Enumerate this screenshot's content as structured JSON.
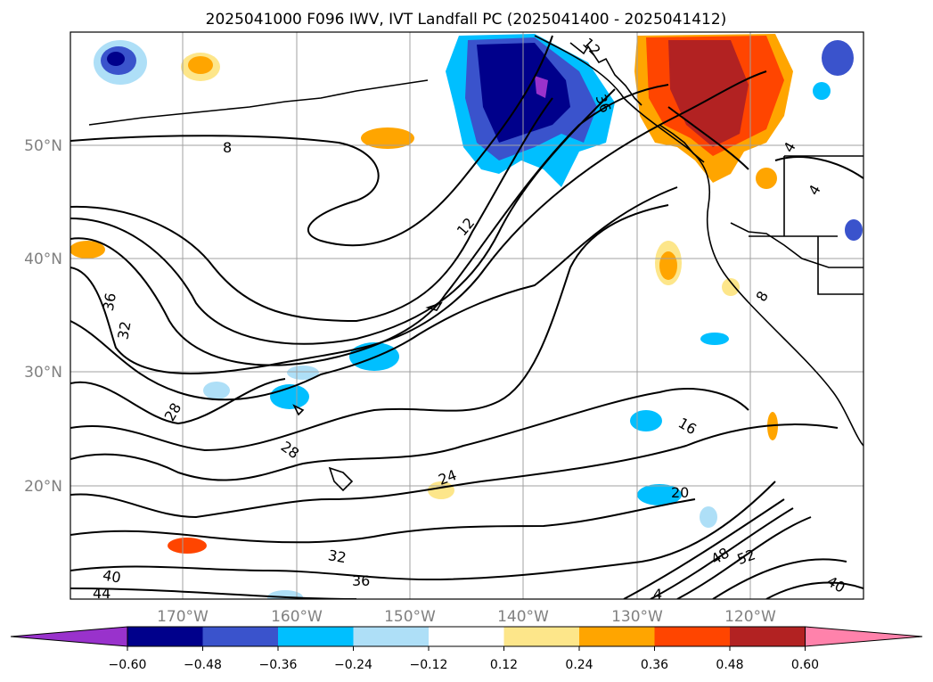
{
  "title": "2025041000 F096 IWV, IVT Landfall PC (2025041400 - 2025041412)",
  "map": {
    "lat_ticks": [
      "50°N",
      "40°N",
      "30°N",
      "20°N"
    ],
    "lon_ticks": [
      "170°W",
      "160°W",
      "150°W",
      "140°W",
      "130°W",
      "120°W"
    ],
    "contour_labels": [
      "8",
      "12",
      "16",
      "20",
      "24",
      "28",
      "28",
      "32",
      "32",
      "36",
      "36",
      "40",
      "40",
      "44",
      "48",
      "52",
      "8",
      "4",
      "4",
      "4",
      "12",
      "36"
    ]
  },
  "colorbar": {
    "ticks": [
      "−0.60",
      "−0.48",
      "−0.36",
      "−0.24",
      "−0.12",
      "0.12",
      "0.24",
      "0.36",
      "0.48",
      "0.60"
    ],
    "colors": [
      "#9932cc",
      "#00008b",
      "#3a53cc",
      "#00bfff",
      "#aedff7",
      "#ffffff",
      "#fde68a",
      "#ffa500",
      "#ff4500",
      "#b22222",
      "#ff82ab"
    ]
  }
}
